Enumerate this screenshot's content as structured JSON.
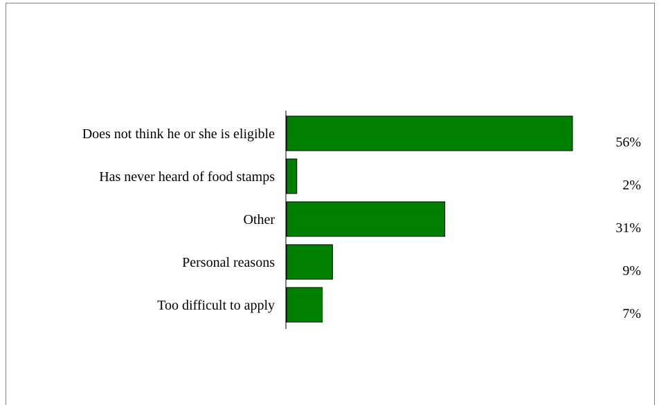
{
  "chart_data": {
    "type": "bar",
    "orientation": "horizontal",
    "categories": [
      "Does not think he or she is eligible",
      "Has never heard of food stamps",
      "Other",
      "Personal reasons",
      "Too difficult to apply"
    ],
    "values": [
      56,
      2,
      31,
      9,
      7
    ],
    "value_labels": [
      "56%",
      "2%",
      "31%",
      "9%",
      "7%"
    ],
    "xlim": [
      0,
      56
    ],
    "grid": false,
    "legend": "none",
    "colors": {
      "bar": "#008000",
      "bar_border": "#000000",
      "axis": "#000000"
    }
  }
}
